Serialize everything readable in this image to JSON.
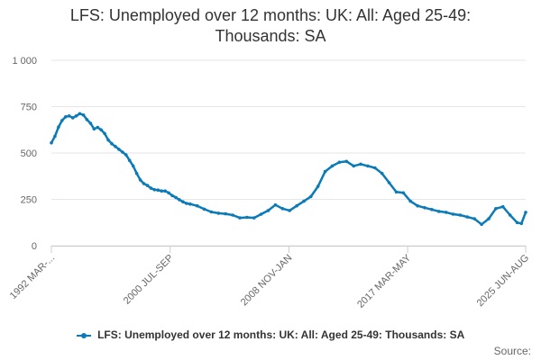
{
  "chart_data": {
    "type": "line",
    "title_lines": [
      "LFS: Unemployed over 12 months: UK: All: Aged 25-49:",
      "Thousands: SA"
    ],
    "xlabel": "",
    "ylabel": "",
    "ylim": [
      0,
      1000
    ],
    "yticks": [
      0,
      250,
      500,
      750,
      1000
    ],
    "ytick_labels": [
      "0",
      "250",
      "500",
      "750",
      "1 000"
    ],
    "xtick_labels": [
      "1992 MAR-...",
      "2000 JUL-SEP",
      "2008 NOV-JAN",
      "2017 MAR-MAY",
      "2025 JUN-AUG"
    ],
    "xtick_years": [
      1992.25,
      2000.6,
      2008.95,
      2017.3,
      2025.6
    ],
    "x_range": [
      1992.25,
      2025.6
    ],
    "grid": true,
    "legend_position": "bottom",
    "color": "#0b7bb8",
    "series": [
      {
        "name": "LFS: Unemployed over 12 months: UK: All: Aged 25-49: Thousands: SA",
        "x": [
          1992.25,
          1992.5,
          1992.75,
          1993.0,
          1993.25,
          1993.5,
          1993.75,
          1994.0,
          1994.25,
          1994.5,
          1994.75,
          1995.0,
          1995.25,
          1995.5,
          1995.75,
          1996.0,
          1996.25,
          1996.5,
          1996.75,
          1997.0,
          1997.25,
          1997.5,
          1997.75,
          1998.0,
          1998.25,
          1998.5,
          1998.75,
          1999.0,
          1999.25,
          1999.5,
          1999.75,
          2000.0,
          2000.25,
          2000.5,
          2000.75,
          2001.0,
          2001.25,
          2001.5,
          2001.75,
          2002.0,
          2002.5,
          2003.0,
          2003.5,
          2004.0,
          2004.5,
          2005.0,
          2005.5,
          2006.0,
          2006.5,
          2007.0,
          2007.5,
          2008.0,
          2008.5,
          2009.0,
          2009.5,
          2010.0,
          2010.5,
          2011.0,
          2011.5,
          2012.0,
          2012.5,
          2013.0,
          2013.5,
          2014.0,
          2014.5,
          2015.0,
          2015.5,
          2016.0,
          2016.5,
          2017.0,
          2017.5,
          2018.0,
          2018.5,
          2019.0,
          2019.5,
          2020.0,
          2020.5,
          2021.0,
          2021.5,
          2022.0,
          2022.5,
          2023.0,
          2023.5,
          2024.0,
          2024.5,
          2025.0,
          2025.3,
          2025.6
        ],
        "values": [
          555,
          590,
          640,
          675,
          695,
          700,
          690,
          700,
          712,
          705,
          680,
          660,
          630,
          638,
          625,
          605,
          570,
          550,
          535,
          520,
          505,
          490,
          460,
          430,
          390,
          355,
          335,
          325,
          310,
          302,
          300,
          295,
          295,
          285,
          270,
          260,
          248,
          237,
          228,
          225,
          215,
          197,
          182,
          175,
          172,
          165,
          150,
          153,
          150,
          170,
          190,
          220,
          200,
          190,
          215,
          240,
          265,
          320,
          400,
          430,
          450,
          455,
          430,
          440,
          430,
          420,
          390,
          340,
          290,
          285,
          240,
          215,
          205,
          195,
          185,
          180,
          170,
          165,
          155,
          145,
          115,
          145,
          200,
          210,
          165,
          125,
          120,
          180
        ]
      }
    ]
  },
  "legend": {
    "label": "LFS: Unemployed over 12 months: UK: All: Aged 25-49: Thousands: SA"
  },
  "source_label": "Source:"
}
